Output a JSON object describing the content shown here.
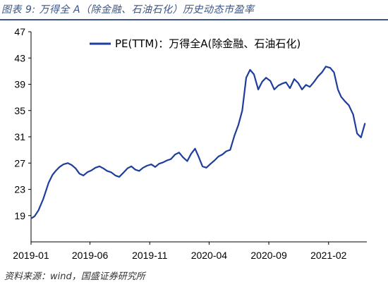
{
  "caption": "图表 9:  万得全 A（除金融、石油石化）历史动态市盈率",
  "source": "资料来源：wind，国盛证券研究所",
  "colors": {
    "line": "#1f3e9c",
    "caption": "#3b5587"
  },
  "chart_data": {
    "type": "line",
    "title": "",
    "xlabel": "",
    "ylabel": "",
    "ylim": [
      15,
      47
    ],
    "yticks": [
      19,
      23,
      27,
      31,
      35,
      39,
      43,
      47
    ],
    "xtick_labels": [
      "2019-01",
      "2019-06",
      "2019-11",
      "2020-04",
      "2020-09",
      "2021-02"
    ],
    "xtick_dates": [
      "2019-01-01",
      "2019-06-01",
      "2019-11-01",
      "2020-04-01",
      "2020-09-01",
      "2021-02-01"
    ],
    "xlim": [
      "2019-01-01",
      "2021-05-10"
    ],
    "grid": false,
    "legend_position": "top-right",
    "series": [
      {
        "name": "PE(TTM)：万得全A(除金融、石油石化)",
        "x": [
          "2019-01-02",
          "2019-01-10",
          "2019-01-20",
          "2019-02-01",
          "2019-02-15",
          "2019-02-25",
          "2019-03-05",
          "2019-03-15",
          "2019-03-25",
          "2019-04-05",
          "2019-04-15",
          "2019-04-25",
          "2019-05-05",
          "2019-05-15",
          "2019-05-25",
          "2019-06-05",
          "2019-06-15",
          "2019-06-25",
          "2019-07-05",
          "2019-07-15",
          "2019-07-25",
          "2019-08-05",
          "2019-08-15",
          "2019-08-25",
          "2019-09-05",
          "2019-09-15",
          "2019-09-25",
          "2019-10-05",
          "2019-10-15",
          "2019-10-25",
          "2019-11-05",
          "2019-11-15",
          "2019-11-25",
          "2019-12-05",
          "2019-12-15",
          "2019-12-25",
          "2020-01-05",
          "2020-01-15",
          "2020-01-25",
          "2020-02-05",
          "2020-02-15",
          "2020-02-25",
          "2020-03-05",
          "2020-03-15",
          "2020-03-25",
          "2020-04-05",
          "2020-04-15",
          "2020-04-25",
          "2020-05-05",
          "2020-05-15",
          "2020-05-25",
          "2020-06-05",
          "2020-06-15",
          "2020-06-25",
          "2020-07-05",
          "2020-07-15",
          "2020-07-25",
          "2020-08-05",
          "2020-08-15",
          "2020-08-25",
          "2020-09-05",
          "2020-09-15",
          "2020-09-25",
          "2020-10-05",
          "2020-10-15",
          "2020-10-25",
          "2020-11-05",
          "2020-11-15",
          "2020-11-25",
          "2020-12-05",
          "2020-12-15",
          "2020-12-25",
          "2021-01-05",
          "2021-01-15",
          "2021-01-25",
          "2021-02-05",
          "2021-02-15",
          "2021-02-25",
          "2021-03-05",
          "2021-03-15",
          "2021-03-25",
          "2021-04-05",
          "2021-04-15",
          "2021-04-25",
          "2021-05-05"
        ],
        "y": [
          18.6,
          18.9,
          19.8,
          21.5,
          24.0,
          25.2,
          25.8,
          26.4,
          26.8,
          27.0,
          26.7,
          26.2,
          25.4,
          25.1,
          25.6,
          25.9,
          26.3,
          26.5,
          26.2,
          25.8,
          25.6,
          25.1,
          24.9,
          25.5,
          26.2,
          26.5,
          26.0,
          25.8,
          26.3,
          26.6,
          26.8,
          26.4,
          26.9,
          27.1,
          27.4,
          27.6,
          28.3,
          28.6,
          27.9,
          27.3,
          28.4,
          29.2,
          28.0,
          26.5,
          26.3,
          26.9,
          27.4,
          28.0,
          28.3,
          28.8,
          29.0,
          31.2,
          32.8,
          35.0,
          40.0,
          41.2,
          40.5,
          38.2,
          39.4,
          40.0,
          39.5,
          38.2,
          38.8,
          39.1,
          39.3,
          38.4,
          39.8,
          39.2,
          38.2,
          38.9,
          38.6,
          39.3,
          40.2,
          40.8,
          41.7,
          41.5,
          40.8,
          38.2,
          37.1,
          36.4,
          35.8,
          34.4,
          31.5,
          30.9,
          33.0
        ]
      }
    ]
  }
}
